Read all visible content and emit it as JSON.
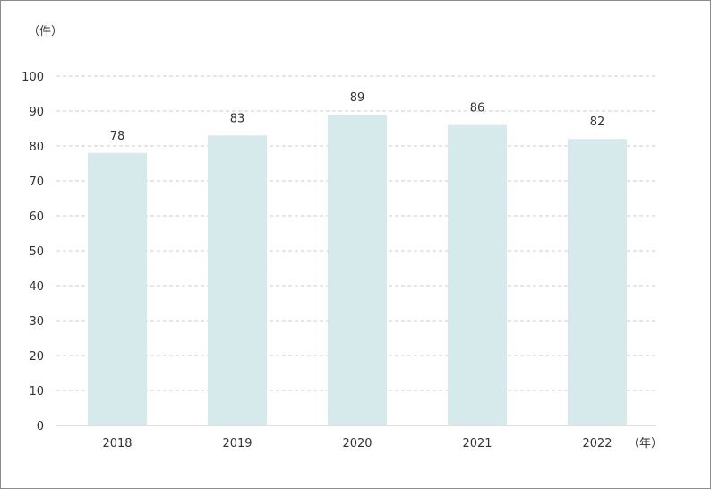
{
  "chart_data": {
    "type": "bar",
    "title": "",
    "ylabel": "（件）",
    "xlabel": "（年）",
    "ylim": [
      0,
      100
    ],
    "yticks": [
      0,
      10,
      20,
      30,
      40,
      50,
      60,
      70,
      80,
      90,
      100
    ],
    "grid": true,
    "categories": [
      "2018",
      "2019",
      "2020",
      "2021",
      "2022"
    ],
    "values": [
      78,
      83,
      89,
      86,
      82
    ],
    "bar_color": "#d6e9eb",
    "grid_color": "#cccccc",
    "axis_color": "#bfbfbf"
  }
}
